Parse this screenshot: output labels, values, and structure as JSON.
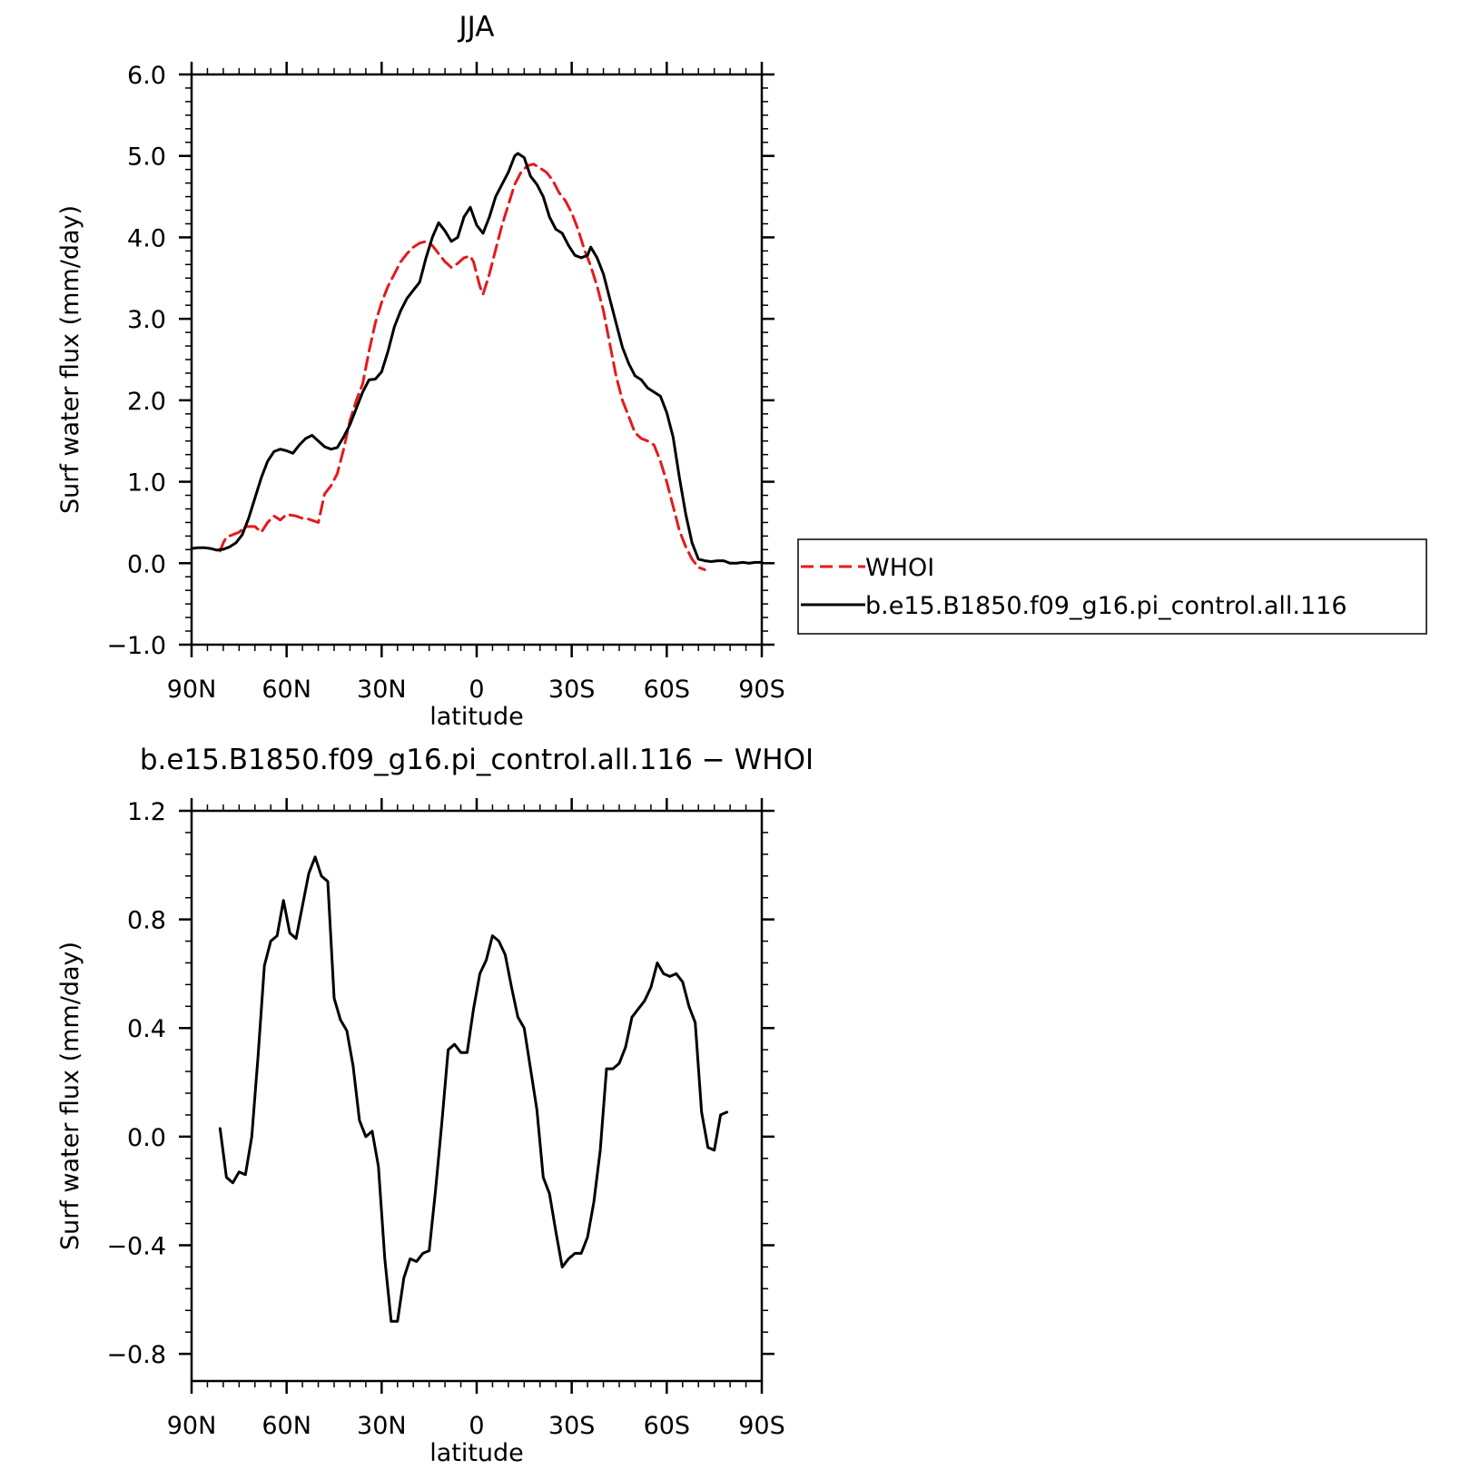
{
  "chart_data": [
    {
      "type": "line",
      "title": "JJA",
      "xlabel": "latitude",
      "ylabel": "Surf water flux (mm/day)",
      "xlim": [
        90,
        -90
      ],
      "ylim": [
        -1.0,
        6.0
      ],
      "x_ticks": [
        90,
        60,
        30,
        0,
        -30,
        -60,
        -90
      ],
      "x_tick_labels": [
        "90N",
        "60N",
        "30N",
        "0",
        "30S",
        "60S",
        "90S"
      ],
      "y_ticks": [
        -1.0,
        0.0,
        1.0,
        2.0,
        3.0,
        4.0,
        5.0,
        6.0
      ],
      "y_tick_labels": [
        "−1.0",
        "0.0",
        "1.0",
        "2.0",
        "3.0",
        "4.0",
        "5.0",
        "6.0"
      ],
      "legend": {
        "placement": "right",
        "entries": [
          {
            "label": "WHOI",
            "color": "#e41a1c",
            "style": "dashed"
          },
          {
            "label": "b.e15.B1850.f09_g16.pi_control.all.116",
            "color": "#000000",
            "style": "solid"
          }
        ]
      },
      "series": [
        {
          "name": "WHOI",
          "color": "#e41a1c",
          "dash": true,
          "points": [
            [
              81,
              0.15
            ],
            [
              80,
              0.25
            ],
            [
              79,
              0.32
            ],
            [
              77,
              0.35
            ],
            [
              75,
              0.38
            ],
            [
              73,
              0.45
            ],
            [
              70,
              0.45
            ],
            [
              68,
              0.38
            ],
            [
              66,
              0.5
            ],
            [
              64,
              0.58
            ],
            [
              62,
              0.53
            ],
            [
              60,
              0.6
            ],
            [
              57,
              0.58
            ],
            [
              55,
              0.55
            ],
            [
              53,
              0.54
            ],
            [
              50,
              0.5
            ],
            [
              48,
              0.85
            ],
            [
              46,
              0.95
            ],
            [
              44,
              1.1
            ],
            [
              42,
              1.4
            ],
            [
              40,
              1.75
            ],
            [
              38,
              2.0
            ],
            [
              36,
              2.2
            ],
            [
              34,
              2.6
            ],
            [
              32,
              2.95
            ],
            [
              30,
              3.2
            ],
            [
              28,
              3.4
            ],
            [
              26,
              3.55
            ],
            [
              24,
              3.7
            ],
            [
              22,
              3.8
            ],
            [
              20,
              3.88
            ],
            [
              18,
              3.93
            ],
            [
              16,
              3.95
            ],
            [
              14,
              3.9
            ],
            [
              12,
              3.8
            ],
            [
              10,
              3.7
            ],
            [
              8,
              3.63
            ],
            [
              6,
              3.68
            ],
            [
              4,
              3.75
            ],
            [
              2,
              3.77
            ],
            [
              1,
              3.7
            ],
            [
              -1,
              3.4
            ],
            [
              -2,
              3.3
            ],
            [
              -4,
              3.55
            ],
            [
              -6,
              3.85
            ],
            [
              -8,
              4.15
            ],
            [
              -10,
              4.4
            ],
            [
              -12,
              4.65
            ],
            [
              -14,
              4.8
            ],
            [
              -16,
              4.88
            ],
            [
              -18,
              4.9
            ],
            [
              -20,
              4.85
            ],
            [
              -22,
              4.8
            ],
            [
              -24,
              4.7
            ],
            [
              -26,
              4.55
            ],
            [
              -28,
              4.45
            ],
            [
              -30,
              4.3
            ],
            [
              -32,
              4.1
            ],
            [
              -34,
              3.85
            ],
            [
              -36,
              3.65
            ],
            [
              -38,
              3.4
            ],
            [
              -40,
              3.1
            ],
            [
              -42,
              2.7
            ],
            [
              -44,
              2.3
            ],
            [
              -46,
              2.0
            ],
            [
              -48,
              1.8
            ],
            [
              -50,
              1.6
            ],
            [
              -52,
              1.53
            ],
            [
              -54,
              1.5
            ],
            [
              -56,
              1.45
            ],
            [
              -58,
              1.25
            ],
            [
              -60,
              1.0
            ],
            [
              -62,
              0.7
            ],
            [
              -64,
              0.4
            ],
            [
              -66,
              0.2
            ],
            [
              -68,
              0.05
            ],
            [
              -70,
              -0.05
            ],
            [
              -72,
              -0.08
            ]
          ]
        },
        {
          "name": "b.e15.B1850.f09_g16.pi_control.all.116",
          "color": "#000000",
          "dash": false,
          "points": [
            [
              90,
              0.18
            ],
            [
              88,
              0.19
            ],
            [
              86,
              0.19
            ],
            [
              84,
              0.18
            ],
            [
              82,
              0.16
            ],
            [
              80,
              0.17
            ],
            [
              78,
              0.2
            ],
            [
              76,
              0.25
            ],
            [
              74,
              0.35
            ],
            [
              72,
              0.55
            ],
            [
              70,
              0.8
            ],
            [
              68,
              1.05
            ],
            [
              66,
              1.25
            ],
            [
              64,
              1.37
            ],
            [
              62,
              1.4
            ],
            [
              60,
              1.38
            ],
            [
              58,
              1.35
            ],
            [
              56,
              1.45
            ],
            [
              54,
              1.53
            ],
            [
              52,
              1.57
            ],
            [
              50,
              1.5
            ],
            [
              48,
              1.43
            ],
            [
              46,
              1.4
            ],
            [
              44,
              1.42
            ],
            [
              42,
              1.55
            ],
            [
              40,
              1.7
            ],
            [
              38,
              1.9
            ],
            [
              36,
              2.1
            ],
            [
              34,
              2.25
            ],
            [
              32,
              2.26
            ],
            [
              30,
              2.35
            ],
            [
              28,
              2.6
            ],
            [
              26,
              2.9
            ],
            [
              24,
              3.1
            ],
            [
              22,
              3.25
            ],
            [
              20,
              3.35
            ],
            [
              18,
              3.45
            ],
            [
              16,
              3.75
            ],
            [
              14,
              4.0
            ],
            [
              12,
              4.18
            ],
            [
              10,
              4.08
            ],
            [
              8,
              3.95
            ],
            [
              6,
              4.0
            ],
            [
              4,
              4.25
            ],
            [
              2,
              4.37
            ],
            [
              0,
              4.15
            ],
            [
              -2,
              4.05
            ],
            [
              -4,
              4.25
            ],
            [
              -6,
              4.5
            ],
            [
              -8,
              4.65
            ],
            [
              -10,
              4.8
            ],
            [
              -12,
              5.0
            ],
            [
              -13,
              5.03
            ],
            [
              -15,
              4.98
            ],
            [
              -17,
              4.75
            ],
            [
              -19,
              4.65
            ],
            [
              -21,
              4.5
            ],
            [
              -23,
              4.25
            ],
            [
              -25,
              4.1
            ],
            [
              -27,
              4.05
            ],
            [
              -29,
              3.9
            ],
            [
              -31,
              3.78
            ],
            [
              -33,
              3.75
            ],
            [
              -35,
              3.78
            ],
            [
              -36,
              3.88
            ],
            [
              -38,
              3.75
            ],
            [
              -40,
              3.55
            ],
            [
              -42,
              3.25
            ],
            [
              -44,
              2.95
            ],
            [
              -46,
              2.65
            ],
            [
              -48,
              2.45
            ],
            [
              -50,
              2.3
            ],
            [
              -52,
              2.25
            ],
            [
              -54,
              2.15
            ],
            [
              -56,
              2.1
            ],
            [
              -58,
              2.05
            ],
            [
              -60,
              1.85
            ],
            [
              -62,
              1.55
            ],
            [
              -64,
              1.05
            ],
            [
              -66,
              0.6
            ],
            [
              -68,
              0.25
            ],
            [
              -70,
              0.05
            ],
            [
              -72,
              0.03
            ],
            [
              -74,
              0.02
            ],
            [
              -76,
              0.03
            ],
            [
              -78,
              0.03
            ],
            [
              -80,
              0.0
            ],
            [
              -82,
              0.0
            ],
            [
              -84,
              0.01
            ],
            [
              -86,
              0.0
            ],
            [
              -88,
              0.01
            ],
            [
              -90,
              0.01
            ]
          ]
        }
      ]
    },
    {
      "type": "line",
      "title": "b.e15.B1850.f09_g16.pi_control.all.116 − WHOI",
      "xlabel": "latitude",
      "ylabel": "Surf water flux (mm/day)",
      "xlim": [
        90,
        -90
      ],
      "ylim": [
        -0.9,
        1.2
      ],
      "x_ticks": [
        90,
        60,
        30,
        0,
        -30,
        -60,
        -90
      ],
      "x_tick_labels": [
        "90N",
        "60N",
        "30N",
        "0",
        "30S",
        "60S",
        "90S"
      ],
      "y_ticks": [
        -0.8,
        -0.4,
        0.0,
        0.4,
        0.8,
        1.2
      ],
      "y_tick_labels": [
        "−0.8",
        "−0.4",
        "0.0",
        "0.4",
        "0.8",
        "1.2"
      ],
      "series": [
        {
          "color": "#000000",
          "dash": false,
          "points": [
            [
              81,
              0.03
            ],
            [
              79,
              -0.15
            ],
            [
              77,
              -0.17
            ],
            [
              75,
              -0.13
            ],
            [
              73,
              -0.14
            ],
            [
              71,
              0.0
            ],
            [
              69,
              0.3
            ],
            [
              67,
              0.63
            ],
            [
              65,
              0.72
            ],
            [
              63,
              0.74
            ],
            [
              61,
              0.87
            ],
            [
              59,
              0.75
            ],
            [
              57,
              0.73
            ],
            [
              55,
              0.85
            ],
            [
              53,
              0.97
            ],
            [
              51,
              1.03
            ],
            [
              49,
              0.96
            ],
            [
              47,
              0.94
            ],
            [
              45,
              0.51
            ],
            [
              43,
              0.43
            ],
            [
              41,
              0.39
            ],
            [
              39,
              0.26
            ],
            [
              37,
              0.06
            ],
            [
              35,
              0.0
            ],
            [
              33,
              0.02
            ],
            [
              31,
              -0.11
            ],
            [
              29,
              -0.45
            ],
            [
              27,
              -0.68
            ],
            [
              25,
              -0.68
            ],
            [
              23,
              -0.52
            ],
            [
              21,
              -0.45
            ],
            [
              19,
              -0.46
            ],
            [
              17,
              -0.43
            ],
            [
              15,
              -0.42
            ],
            [
              13,
              -0.2
            ],
            [
              11,
              0.05
            ],
            [
              9,
              0.32
            ],
            [
              7,
              0.34
            ],
            [
              5,
              0.31
            ],
            [
              3,
              0.31
            ],
            [
              1,
              0.47
            ],
            [
              -1,
              0.6
            ],
            [
              -3,
              0.65
            ],
            [
              -5,
              0.74
            ],
            [
              -7,
              0.72
            ],
            [
              -9,
              0.67
            ],
            [
              -11,
              0.55
            ],
            [
              -13,
              0.44
            ],
            [
              -15,
              0.4
            ],
            [
              -17,
              0.25
            ],
            [
              -19,
              0.1
            ],
            [
              -21,
              -0.15
            ],
            [
              -23,
              -0.21
            ],
            [
              -25,
              -0.35
            ],
            [
              -27,
              -0.48
            ],
            [
              -29,
              -0.45
            ],
            [
              -31,
              -0.43
            ],
            [
              -33,
              -0.43
            ],
            [
              -35,
              -0.37
            ],
            [
              -37,
              -0.24
            ],
            [
              -39,
              -0.05
            ],
            [
              -41,
              0.25
            ],
            [
              -43,
              0.25
            ],
            [
              -45,
              0.27
            ],
            [
              -47,
              0.33
            ],
            [
              -49,
              0.44
            ],
            [
              -51,
              0.47
            ],
            [
              -53,
              0.5
            ],
            [
              -55,
              0.55
            ],
            [
              -57,
              0.64
            ],
            [
              -59,
              0.6
            ],
            [
              -61,
              0.59
            ],
            [
              -63,
              0.6
            ],
            [
              -65,
              0.57
            ],
            [
              -67,
              0.48
            ],
            [
              -69,
              0.42
            ],
            [
              -71,
              0.09
            ],
            [
              -73,
              -0.04
            ],
            [
              -75,
              -0.05
            ],
            [
              -77,
              0.08
            ],
            [
              -79,
              0.09
            ]
          ]
        }
      ]
    }
  ]
}
